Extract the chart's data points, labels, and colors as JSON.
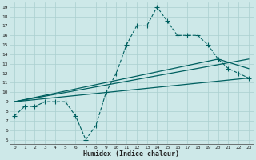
{
  "xlabel": "Humidex (Indice chaleur)",
  "ylabel": "",
  "background_color": "#cde8e8",
  "grid_color": "#aacfcf",
  "line_color": "#006060",
  "xlim": [
    -0.5,
    23.5
  ],
  "ylim": [
    4.5,
    19.5
  ],
  "xticks": [
    0,
    1,
    2,
    3,
    4,
    5,
    6,
    7,
    8,
    9,
    10,
    11,
    12,
    13,
    14,
    15,
    16,
    17,
    18,
    19,
    20,
    21,
    22,
    23
  ],
  "yticks": [
    5,
    6,
    7,
    8,
    9,
    10,
    11,
    12,
    13,
    14,
    15,
    16,
    17,
    18,
    19
  ],
  "series": [
    {
      "x": [
        0,
        1,
        2,
        3,
        4,
        5,
        6,
        7,
        8,
        9,
        10,
        11,
        12,
        13,
        14,
        15,
        16,
        17,
        18,
        19,
        20,
        21,
        22,
        23
      ],
      "y": [
        7.5,
        8.5,
        8.5,
        9.0,
        9.0,
        9.0,
        7.5,
        5.0,
        6.5,
        10.0,
        12.0,
        15.0,
        17.0,
        17.0,
        19.0,
        17.5,
        16.0,
        16.0,
        16.0,
        15.0,
        13.5,
        12.5,
        12.0,
        11.5
      ],
      "style": "--",
      "marker": "+",
      "linewidth": 0.8,
      "markersize": 4
    },
    {
      "x": [
        0,
        23
      ],
      "y": [
        9.0,
        11.5
      ],
      "style": "-",
      "marker": null,
      "linewidth": 0.9,
      "markersize": 0
    },
    {
      "x": [
        0,
        23
      ],
      "y": [
        9.0,
        13.5
      ],
      "style": "-",
      "marker": null,
      "linewidth": 0.9,
      "markersize": 0
    },
    {
      "x": [
        0,
        20,
        23
      ],
      "y": [
        9.0,
        13.5,
        12.5
      ],
      "style": "-",
      "marker": null,
      "linewidth": 0.9,
      "markersize": 0
    }
  ]
}
